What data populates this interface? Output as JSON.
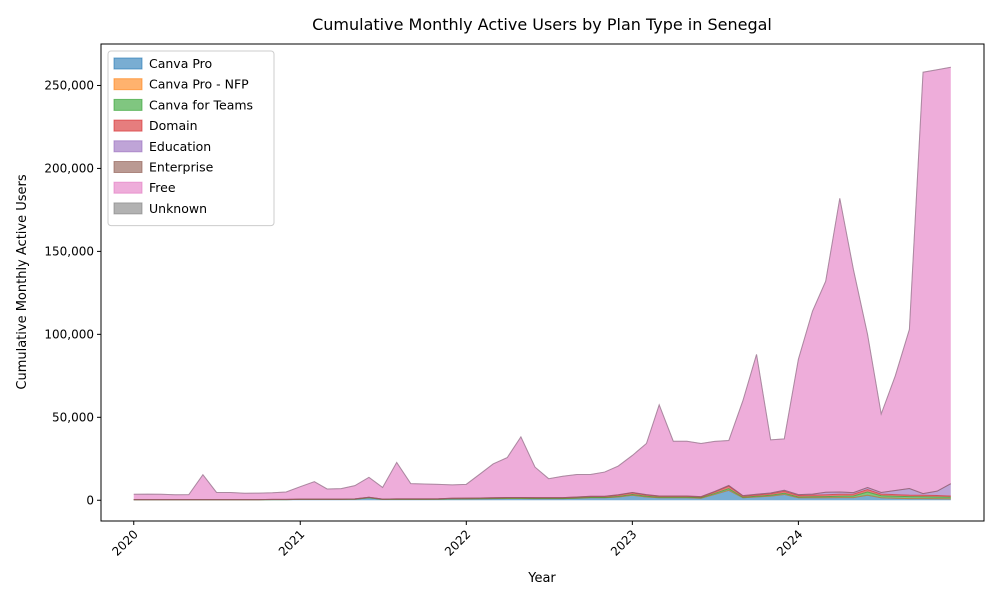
{
  "chart_data": {
    "type": "area",
    "stacked": true,
    "title": "Cumulative Monthly Active Users by Plan Type in Senegal",
    "xlabel": "Year",
    "ylabel": "Cumulative Monthly Active Users",
    "xlim": [
      "2019-10-21",
      "2025-02-12"
    ],
    "ylim": [
      -12500,
      275000
    ],
    "x_ticks": [
      "2020",
      "2021",
      "2022",
      "2023",
      "2024"
    ],
    "y_ticks": [
      0,
      50000,
      100000,
      150000,
      200000,
      250000
    ],
    "y_tick_labels": [
      "0",
      "50,000",
      "100,000",
      "150,000",
      "200,000",
      "250,000"
    ],
    "legend_position": "top-left",
    "grid": false,
    "x": [
      "2020-01",
      "2020-02",
      "2020-03",
      "2020-04",
      "2020-05",
      "2020-06",
      "2020-07",
      "2020-08",
      "2020-09",
      "2020-10",
      "2020-11",
      "2020-12",
      "2021-01",
      "2021-02",
      "2021-03",
      "2021-04",
      "2021-05",
      "2021-06",
      "2021-07",
      "2021-08",
      "2021-09",
      "2021-10",
      "2021-11",
      "2021-12",
      "2022-01",
      "2022-02",
      "2022-03",
      "2022-04",
      "2022-05",
      "2022-06",
      "2022-07",
      "2022-08",
      "2022-09",
      "2022-10",
      "2022-11",
      "2022-12",
      "2023-01",
      "2023-02",
      "2023-03",
      "2023-04",
      "2023-05",
      "2023-06",
      "2023-07",
      "2023-08",
      "2023-09",
      "2023-10",
      "2023-11",
      "2023-12",
      "2024-01",
      "2024-02",
      "2024-03",
      "2024-04",
      "2024-05",
      "2024-06",
      "2024-07",
      "2024-08",
      "2024-09",
      "2024-10",
      "2024-11",
      "2024-12"
    ],
    "series": [
      {
        "name": "Canva Pro",
        "color": "#1f77b4",
        "values": [
          300,
          300,
          300,
          300,
          300,
          300,
          300,
          300,
          300,
          300,
          400,
          400,
          500,
          500,
          500,
          500,
          600,
          1500,
          500,
          500,
          500,
          500,
          600,
          800,
          800,
          900,
          1000,
          1100,
          1100,
          1000,
          1000,
          1000,
          1200,
          1500,
          1500,
          2000,
          3000,
          2000,
          1500,
          1500,
          1500,
          1200,
          3500,
          6000,
          1500,
          2000,
          2500,
          3500,
          1500,
          1500,
          1500,
          1600,
          1600,
          3000,
          1500,
          1200,
          1000,
          1000,
          900,
          800
        ]
      },
      {
        "name": "Canva Pro - NFP",
        "color": "#ff7f0e",
        "values": [
          0,
          0,
          0,
          0,
          0,
          0,
          0,
          0,
          0,
          0,
          0,
          0,
          0,
          0,
          0,
          0,
          0,
          0,
          0,
          0,
          0,
          0,
          0,
          0,
          0,
          0,
          0,
          0,
          0,
          0,
          0,
          0,
          0,
          0,
          0,
          0,
          0,
          0,
          0,
          0,
          0,
          0,
          0,
          0,
          0,
          0,
          0,
          0,
          0,
          0,
          0,
          0,
          0,
          0,
          0,
          0,
          0,
          0,
          0,
          0
        ]
      },
      {
        "name": "Canva for Teams",
        "color": "#2ca02c",
        "values": [
          0,
          0,
          0,
          0,
          0,
          0,
          0,
          0,
          0,
          0,
          0,
          0,
          0,
          0,
          0,
          0,
          0,
          0,
          0,
          0,
          0,
          0,
          0,
          0,
          100,
          100,
          100,
          100,
          100,
          100,
          100,
          100,
          200,
          200,
          200,
          300,
          500,
          400,
          300,
          300,
          300,
          300,
          600,
          1000,
          300,
          400,
          500,
          700,
          500,
          600,
          700,
          800,
          1000,
          2000,
          1200,
          1200,
          1200,
          1100,
          1100,
          1000
        ]
      },
      {
        "name": "Domain",
        "color": "#d62728",
        "values": [
          100,
          100,
          100,
          100,
          100,
          100,
          100,
          100,
          100,
          100,
          100,
          100,
          200,
          200,
          200,
          200,
          200,
          300,
          200,
          300,
          300,
          300,
          300,
          400,
          400,
          400,
          400,
          500,
          500,
          500,
          500,
          500,
          500,
          600,
          600,
          800,
          1000,
          800,
          600,
          600,
          600,
          500,
          900,
          1500,
          700,
          800,
          900,
          1200,
          900,
          1000,
          1100,
          1200,
          1100,
          1500,
          1000,
          1000,
          900,
          900,
          900,
          800
        ]
      },
      {
        "name": "Education",
        "color": "#9467bd",
        "values": [
          0,
          0,
          0,
          0,
          0,
          0,
          0,
          0,
          0,
          0,
          0,
          0,
          0,
          0,
          0,
          0,
          0,
          0,
          0,
          0,
          0,
          0,
          0,
          0,
          0,
          0,
          0,
          0,
          0,
          0,
          0,
          0,
          100,
          100,
          100,
          200,
          200,
          200,
          200,
          200,
          200,
          200,
          300,
          400,
          300,
          400,
          500,
          600,
          500,
          600,
          1500,
          1400,
          900,
          1200,
          1000,
          2500,
          4000,
          1000,
          2600,
          7400
        ]
      },
      {
        "name": "Enterprise",
        "color": "#8c564b",
        "values": [
          0,
          0,
          0,
          0,
          0,
          0,
          0,
          0,
          0,
          0,
          0,
          0,
          0,
          0,
          0,
          0,
          0,
          0,
          0,
          0,
          0,
          0,
          0,
          0,
          0,
          0,
          0,
          0,
          0,
          0,
          0,
          0,
          0,
          0,
          0,
          0,
          0,
          0,
          0,
          0,
          0,
          0,
          0,
          0,
          0,
          0,
          0,
          0,
          0,
          0,
          0,
          0,
          0,
          0,
          0,
          0,
          0,
          0,
          0,
          0
        ]
      },
      {
        "name": "Free",
        "color": "#e377c2",
        "values": [
          3200,
          3300,
          3200,
          2900,
          3000,
          15000,
          4300,
          4300,
          3800,
          3900,
          4000,
          4500,
          7500,
          10500,
          6100,
          6300,
          8000,
          12000,
          7000,
          22000,
          9200,
          9000,
          8700,
          8100,
          8300,
          14600,
          20400,
          24000,
          36500,
          18400,
          11400,
          12900,
          13500,
          13100,
          14600,
          17300,
          22300,
          30800,
          54900,
          33000,
          33000,
          32000,
          30200,
          27100,
          57200,
          84300,
          32000,
          31000,
          81600,
          110300,
          127200,
          177000,
          134400,
          92300,
          47300,
          69100,
          95900,
          254000,
          254000,
          251000
        ]
      },
      {
        "name": "Unknown",
        "color": "#7f7f7f",
        "values": [
          0,
          0,
          0,
          0,
          0,
          0,
          0,
          0,
          0,
          0,
          0,
          0,
          0,
          0,
          0,
          0,
          0,
          0,
          0,
          0,
          0,
          0,
          0,
          0,
          0,
          0,
          0,
          0,
          0,
          0,
          0,
          0,
          0,
          0,
          0,
          0,
          0,
          0,
          0,
          0,
          0,
          0,
          0,
          0,
          0,
          0,
          0,
          0,
          0,
          0,
          0,
          0,
          0,
          0,
          0,
          0,
          0,
          0,
          0,
          0
        ]
      }
    ]
  }
}
